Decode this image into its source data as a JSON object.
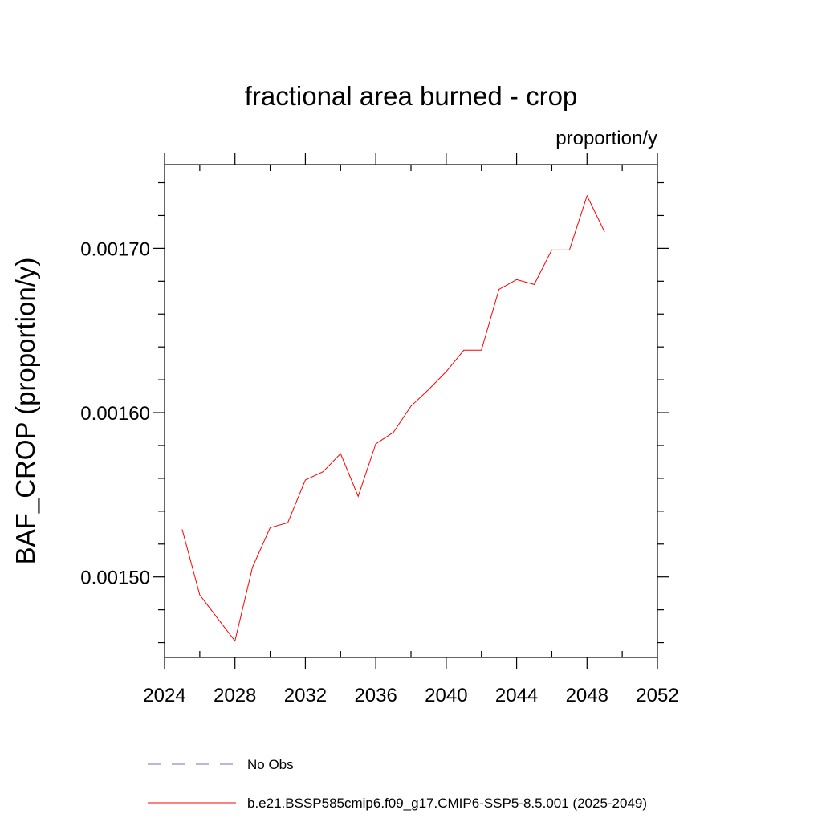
{
  "chart_data": {
    "type": "line",
    "title": "fractional area burned - crop",
    "units": "proportion/y",
    "xlabel": "",
    "ylabel": "BAF_CROP  (proportion/y)",
    "xlim": [
      2024,
      2052
    ],
    "ylim": [
      0.001451,
      0.001751
    ],
    "x_ticks": [
      2024,
      2028,
      2032,
      2036,
      2040,
      2044,
      2048,
      2052
    ],
    "x_tick_labels": [
      "2024",
      "2028",
      "2032",
      "2036",
      "2040",
      "2044",
      "2048",
      "2052"
    ],
    "y_ticks": [
      0.0015,
      0.0016,
      0.0017
    ],
    "y_tick_labels": [
      "0.00150",
      "0.00160",
      "0.00170"
    ],
    "y_minor_step": 2e-05,
    "x_minor_step": 2,
    "grid": false,
    "legend_position": "bottom",
    "series": [
      {
        "name": "No Obs",
        "color": "#7b68c8",
        "dash": "dashed",
        "x": [],
        "values": []
      },
      {
        "name": "b.e21.BSSP585cmip6.f09_g17.CMIP6-SSP5-8.5.001 (2025-2049)",
        "color": "#ff0000",
        "dash": "solid",
        "x": [
          2025,
          2026,
          2027,
          2028,
          2029,
          2030,
          2031,
          2032,
          2033,
          2034,
          2035,
          2036,
          2037,
          2038,
          2039,
          2040,
          2041,
          2042,
          2043,
          2044,
          2045,
          2046,
          2047,
          2048,
          2049
        ],
        "values": [
          0.001529,
          0.001489,
          0.001475,
          0.001461,
          0.001506,
          0.00153,
          0.001533,
          0.001559,
          0.001564,
          0.001575,
          0.001549,
          0.001581,
          0.001588,
          0.001604,
          0.001614,
          0.001625,
          0.001638,
          0.001638,
          0.001675,
          0.001681,
          0.001678,
          0.001699,
          0.001699,
          0.001732,
          0.00171
        ]
      }
    ]
  }
}
